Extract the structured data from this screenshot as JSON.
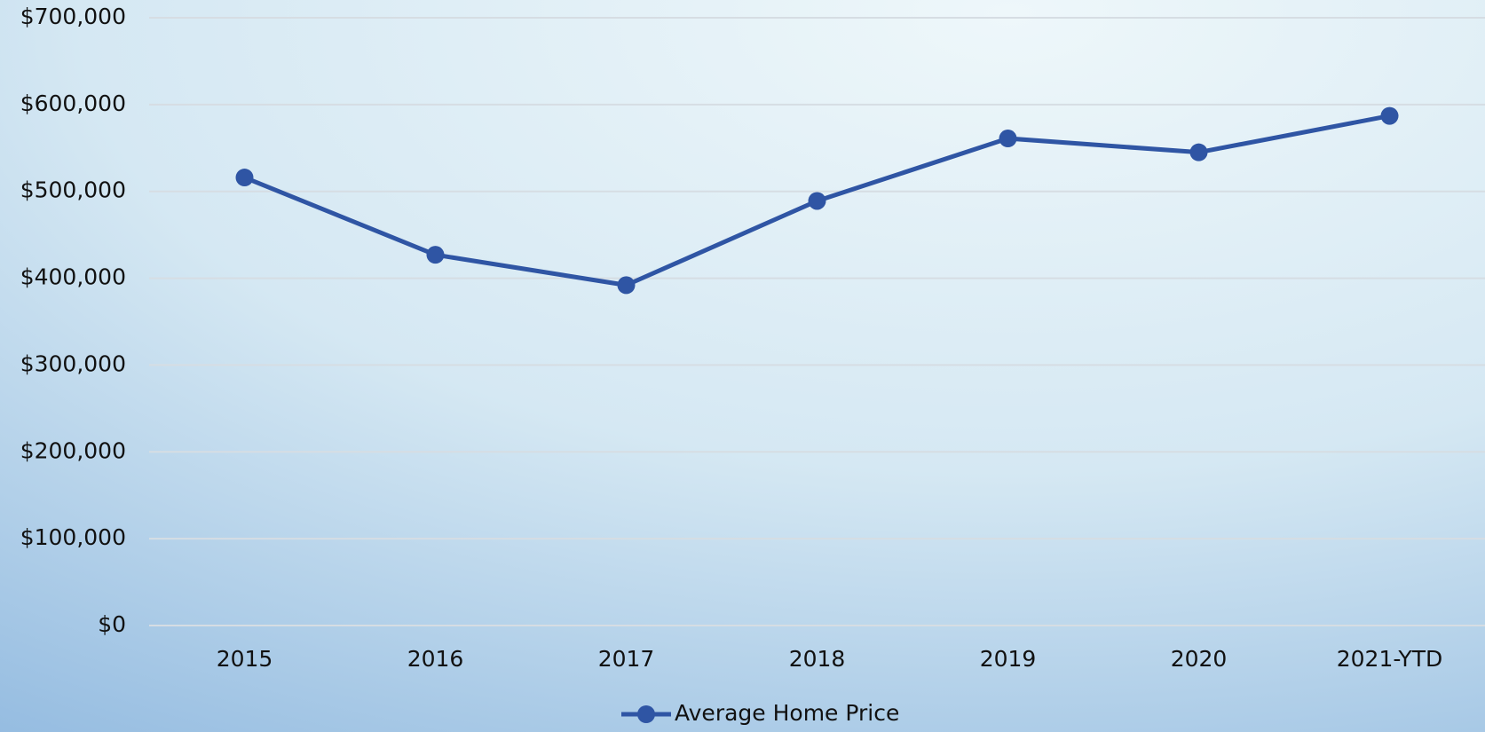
{
  "chart_data": {
    "type": "line",
    "categories": [
      "2015",
      "2016",
      "2017",
      "2018",
      "2019",
      "2020",
      "2021-YTD"
    ],
    "series": [
      {
        "name": "Average Home Price",
        "color": "#2f55a4",
        "values": [
          516000,
          427000,
          392000,
          489000,
          561000,
          545000,
          587000
        ]
      }
    ],
    "ylim": [
      0,
      700000
    ],
    "yticks": [
      {
        "value": 0,
        "label": "$0"
      },
      {
        "value": 100000,
        "label": "$100,000"
      },
      {
        "value": 200000,
        "label": "$200,000"
      },
      {
        "value": 300000,
        "label": "$300,000"
      },
      {
        "value": 400000,
        "label": "$400,000"
      },
      {
        "value": 500000,
        "label": "$500,000"
      },
      {
        "value": 600000,
        "label": "$600,000"
      },
      {
        "value": 700000,
        "label": "$700,000"
      }
    ],
    "grid": true,
    "legend": "bottom"
  }
}
